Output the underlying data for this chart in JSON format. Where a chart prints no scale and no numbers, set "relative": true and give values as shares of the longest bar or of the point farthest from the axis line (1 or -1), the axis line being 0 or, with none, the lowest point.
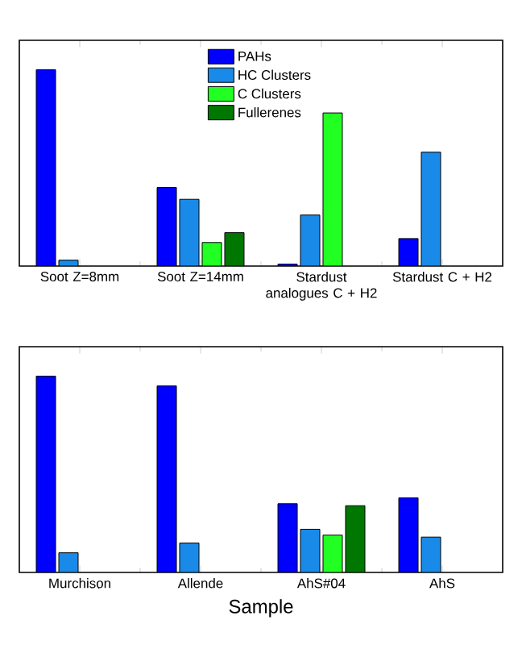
{
  "chart_data": [
    {
      "type": "bar",
      "relative": true,
      "legend": "top",
      "categories": [
        "Soot Z=8mm",
        "Soot Z=14mm",
        "Stardust analogues C + H2",
        "Stardust C + H2"
      ],
      "series": [
        {
          "name": "PAHs",
          "color": "#0000ff",
          "values": [
            1,
            0.4,
            0.01,
            0.14
          ]
        },
        {
          "name": "HC Clusters",
          "color": "#1a8ae8",
          "values": [
            0.03,
            0.34,
            0.26,
            0.58
          ]
        },
        {
          "name": "C Clusters",
          "color": "#22ff22",
          "values": [
            null,
            0.12,
            0.78,
            null
          ]
        },
        {
          "name": "Fullerenes",
          "color": "#007700",
          "values": [
            null,
            0.17,
            null,
            null
          ]
        }
      ]
    },
    {
      "type": "bar",
      "relative": true,
      "xlabel": "Sample",
      "categories": [
        "Murchison",
        "Allende",
        "AhS#04",
        "AhS"
      ],
      "series": [
        {
          "color": "#0000ff",
          "values": [
            1,
            0.95,
            0.35,
            0.38
          ]
        },
        {
          "color": "#1a8ae8",
          "values": [
            0.1,
            0.15,
            0.22,
            0.18
          ]
        },
        {
          "color": "#22ff22",
          "values": [
            null,
            null,
            0.19,
            null
          ]
        },
        {
          "color": "#007700",
          "values": [
            null,
            null,
            0.34,
            null
          ]
        }
      ]
    }
  ]
}
